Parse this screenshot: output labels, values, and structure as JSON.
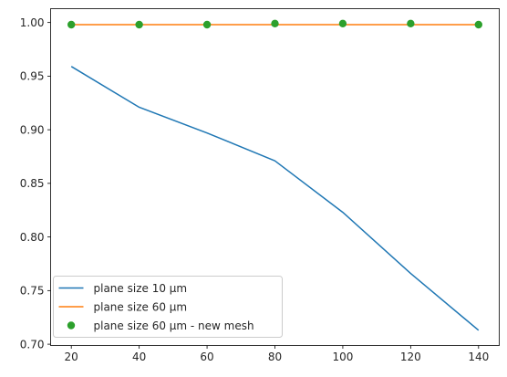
{
  "chart_data": {
    "type": "line",
    "title": "",
    "xlabel": "",
    "ylabel": "",
    "x": [
      20,
      40,
      60,
      80,
      100,
      120,
      140
    ],
    "xlim": [
      13.9,
      146.1
    ],
    "ylim": [
      0.6988,
      1.0129
    ],
    "xticks": [
      20,
      40,
      60,
      80,
      100,
      120,
      140
    ],
    "yticks": [
      0.7,
      0.75,
      0.8,
      0.85,
      0.9,
      0.95,
      1.0
    ],
    "ytick_labels": [
      "0.70",
      "0.75",
      "0.80",
      "0.85",
      "0.90",
      "0.95",
      "1.00"
    ],
    "grid": false,
    "legend_position": "lower-left",
    "series": [
      {
        "name": "plane size 10 µm",
        "kind": "line",
        "color": "#1f77b4",
        "values": [
          0.959,
          0.921,
          0.897,
          0.871,
          0.823,
          0.766,
          0.713
        ]
      },
      {
        "name": "plane size 60 µm",
        "kind": "line",
        "color": "#ff7f0e",
        "values": [
          0.998,
          0.998,
          0.998,
          0.998,
          0.998,
          0.998,
          0.998
        ]
      },
      {
        "name": "plane size 60 µm - new mesh",
        "kind": "markers",
        "color": "#2ca02c",
        "values": [
          0.998,
          0.998,
          0.998,
          0.999,
          0.999,
          0.999,
          0.998
        ]
      }
    ]
  }
}
